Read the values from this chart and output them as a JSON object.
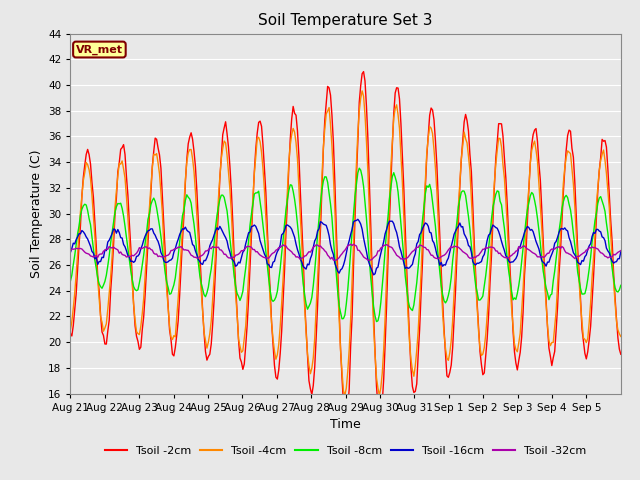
{
  "title": "Soil Temperature Set 3",
  "xlabel": "Time",
  "ylabel": "Soil Temperature (C)",
  "ylim": [
    16,
    44
  ],
  "yticks": [
    16,
    18,
    20,
    22,
    24,
    26,
    28,
    30,
    32,
    34,
    36,
    38,
    40,
    42,
    44
  ],
  "facecolor": "#e8e8e8",
  "annotation_text": "VR_met",
  "annotation_bg": "#ffff99",
  "annotation_border": "#800000",
  "series": [
    {
      "label": "Tsoil -2cm",
      "color": "#ff0000"
    },
    {
      "label": "Tsoil -4cm",
      "color": "#ff8800"
    },
    {
      "label": "Tsoil -8cm",
      "color": "#00ee00"
    },
    {
      "label": "Tsoil -16cm",
      "color": "#0000cc"
    },
    {
      "label": "Tsoil -32cm",
      "color": "#aa00aa"
    }
  ],
  "tick_labels": [
    "Aug 21",
    "Aug 22",
    "Aug 23",
    "Aug 24",
    "Aug 25",
    "Aug 26",
    "Aug 27",
    "Aug 28",
    "Aug 29",
    "Aug 30",
    "Aug 31",
    "Sep 1",
    "Sep 2",
    "Sep 3",
    "Sep 4",
    "Sep 5"
  ],
  "n_days": 16,
  "pts_per_day": 24
}
